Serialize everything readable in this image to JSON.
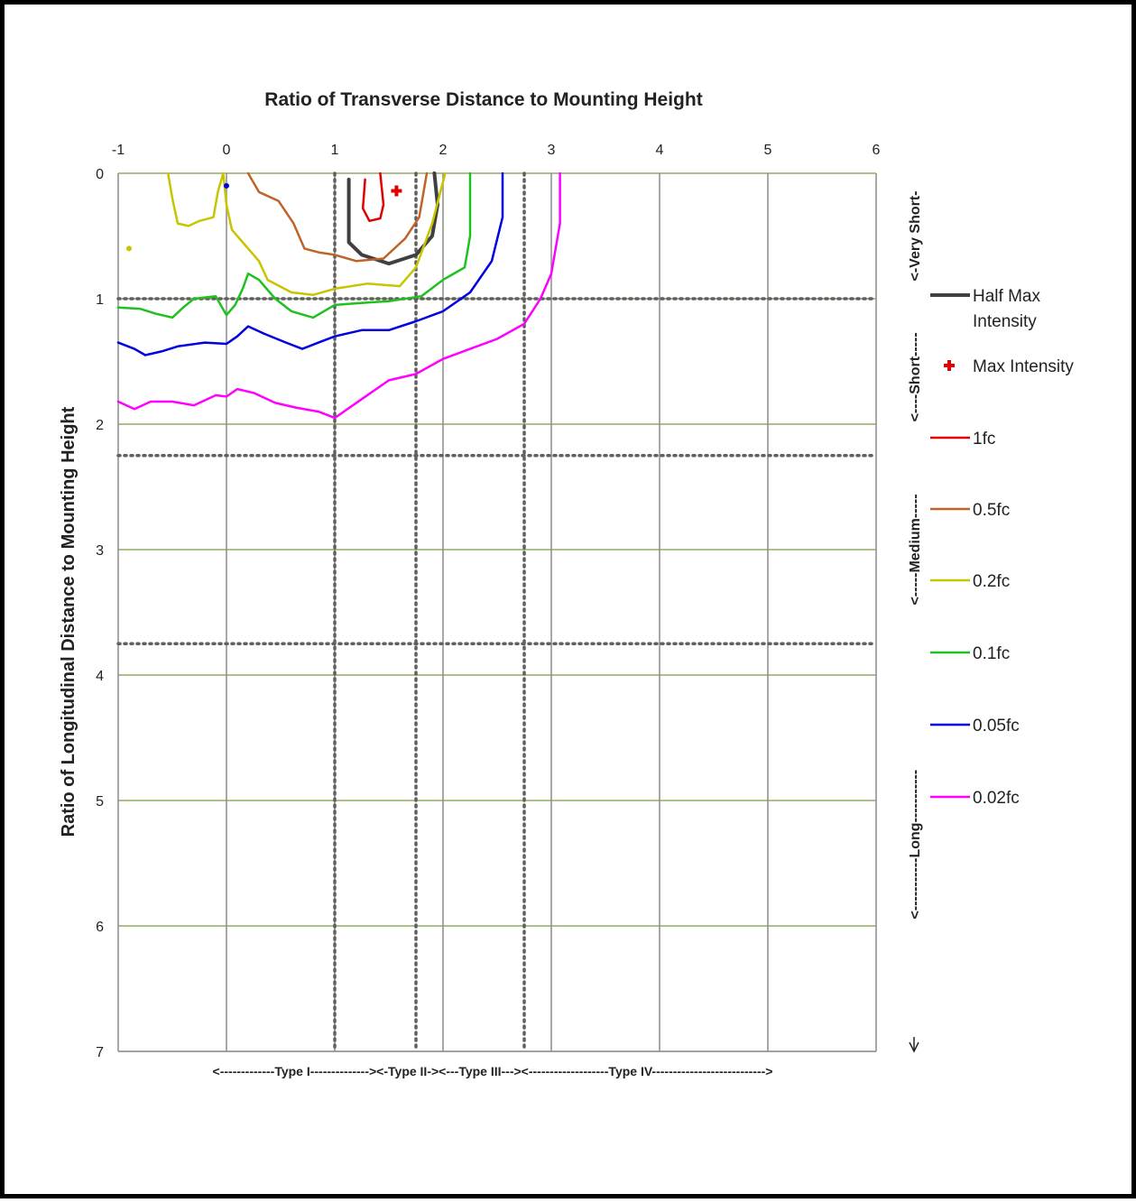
{
  "chart_data": {
    "type": "line",
    "title": "Ratio of Transverse Distance to Mounting Height",
    "xlabel": "Ratio of Transverse Distance to Mounting Height",
    "ylabel": "Ratio of Longitudinal Distance to Mounting Height",
    "xlim": [
      -1,
      6
    ],
    "ylim": [
      7,
      0
    ],
    "x_ticks": [
      "-1",
      "0",
      "1",
      "2",
      "3",
      "4",
      "5",
      "6"
    ],
    "y_ticks": [
      "0",
      "1",
      "2",
      "3",
      "4",
      "5",
      "6",
      "7"
    ],
    "grid": true,
    "legend_position": "right",
    "type_boundaries_x": [
      1,
      1.75,
      2.75
    ],
    "length_boundaries_y": [
      1,
      2.25,
      3.75
    ],
    "type_bands_text": "<-------------Type I--------------><-Type II-><---Type III---><-------------------Type IV--------------------------->",
    "length_bands": [
      {
        "label": "<-Very Short-",
        "from": 0,
        "to": 1
      },
      {
        "label": "<----Short-----",
        "from": 1,
        "to": 2.25
      },
      {
        "label": "<-----Medium-----",
        "from": 2.25,
        "to": 3.75
      },
      {
        "label": "<-----------Long-----------",
        "from": 3.75,
        "to": 7
      }
    ],
    "series": [
      {
        "name": "Half Max Intensity",
        "color": "#404040",
        "width": 4,
        "points": [
          [
            1.13,
            0.05
          ],
          [
            1.13,
            0.55
          ],
          [
            1.25,
            0.65
          ],
          [
            1.5,
            0.72
          ],
          [
            1.75,
            0.65
          ],
          [
            1.9,
            0.5
          ],
          [
            1.95,
            0.25
          ],
          [
            1.92,
            0
          ]
        ]
      },
      {
        "name": "1fc",
        "color": "#e00000",
        "width": 2.5,
        "points": [
          [
            1.28,
            0.05
          ],
          [
            1.26,
            0.28
          ],
          [
            1.32,
            0.38
          ],
          [
            1.42,
            0.36
          ],
          [
            1.45,
            0.25
          ],
          [
            1.42,
            0
          ]
        ]
      },
      {
        "name": "0.5fc",
        "color": "#c0632a",
        "width": 2.5,
        "points": [
          [
            0.2,
            0
          ],
          [
            0.3,
            0.15
          ],
          [
            0.48,
            0.22
          ],
          [
            0.62,
            0.4
          ],
          [
            0.72,
            0.6
          ],
          [
            0.85,
            0.63
          ],
          [
            1.0,
            0.65
          ],
          [
            1.2,
            0.7
          ],
          [
            1.45,
            0.68
          ],
          [
            1.65,
            0.52
          ],
          [
            1.78,
            0.35
          ],
          [
            1.85,
            0
          ]
        ]
      },
      {
        "name": "0.2fc",
        "color": "#c8c400",
        "width": 2.5,
        "points": [
          [
            -0.54,
            0
          ],
          [
            -0.5,
            0.2
          ],
          [
            -0.45,
            0.4
          ],
          [
            -0.35,
            0.42
          ],
          [
            -0.25,
            0.38
          ],
          [
            -0.12,
            0.35
          ],
          [
            -0.08,
            0.15
          ],
          [
            -0.03,
            0
          ],
          [
            0.0,
            0.25
          ],
          [
            0.05,
            0.45
          ],
          [
            0.15,
            0.55
          ],
          [
            0.3,
            0.7
          ],
          [
            0.38,
            0.85
          ],
          [
            0.6,
            0.95
          ],
          [
            0.8,
            0.97
          ],
          [
            1.0,
            0.92
          ],
          [
            1.3,
            0.88
          ],
          [
            1.6,
            0.9
          ],
          [
            1.75,
            0.75
          ],
          [
            1.9,
            0.4
          ],
          [
            2.02,
            0
          ]
        ]
      },
      {
        "name": "0.1fc",
        "color": "#20c020",
        "width": 2.5,
        "points": [
          [
            -1.0,
            1.07
          ],
          [
            -0.8,
            1.08
          ],
          [
            -0.65,
            1.12
          ],
          [
            -0.5,
            1.15
          ],
          [
            -0.4,
            1.07
          ],
          [
            -0.3,
            1.0
          ],
          [
            -0.1,
            0.98
          ],
          [
            0.0,
            1.13
          ],
          [
            0.08,
            1.05
          ],
          [
            0.15,
            0.92
          ],
          [
            0.2,
            0.8
          ],
          [
            0.3,
            0.85
          ],
          [
            0.45,
            1.0
          ],
          [
            0.6,
            1.1
          ],
          [
            0.8,
            1.15
          ],
          [
            1.0,
            1.05
          ],
          [
            1.3,
            1.03
          ],
          [
            1.5,
            1.02
          ],
          [
            1.8,
            0.98
          ],
          [
            2.0,
            0.85
          ],
          [
            2.2,
            0.75
          ],
          [
            2.25,
            0.5
          ],
          [
            2.25,
            0
          ]
        ]
      },
      {
        "name": "0.05fc",
        "color": "#0000e0",
        "width": 2.5,
        "points": [
          [
            -1.0,
            1.35
          ],
          [
            -0.85,
            1.4
          ],
          [
            -0.75,
            1.45
          ],
          [
            -0.6,
            1.42
          ],
          [
            -0.45,
            1.38
          ],
          [
            -0.2,
            1.35
          ],
          [
            0.0,
            1.36
          ],
          [
            0.1,
            1.3
          ],
          [
            0.2,
            1.22
          ],
          [
            0.35,
            1.28
          ],
          [
            0.55,
            1.35
          ],
          [
            0.7,
            1.4
          ],
          [
            0.85,
            1.35
          ],
          [
            1.0,
            1.3
          ],
          [
            1.25,
            1.25
          ],
          [
            1.5,
            1.25
          ],
          [
            1.75,
            1.18
          ],
          [
            2.0,
            1.1
          ],
          [
            2.25,
            0.95
          ],
          [
            2.45,
            0.7
          ],
          [
            2.55,
            0.35
          ],
          [
            2.55,
            0
          ]
        ]
      },
      {
        "name": "0.02fc",
        "color": "#ff00ff",
        "width": 2.5,
        "points": [
          [
            -1.0,
            1.82
          ],
          [
            -0.85,
            1.88
          ],
          [
            -0.7,
            1.82
          ],
          [
            -0.5,
            1.82
          ],
          [
            -0.3,
            1.85
          ],
          [
            -0.1,
            1.77
          ],
          [
            0.0,
            1.78
          ],
          [
            0.1,
            1.72
          ],
          [
            0.25,
            1.75
          ],
          [
            0.45,
            1.83
          ],
          [
            0.65,
            1.87
          ],
          [
            0.85,
            1.9
          ],
          [
            1.0,
            1.95
          ],
          [
            1.25,
            1.8
          ],
          [
            1.5,
            1.65
          ],
          [
            1.75,
            1.6
          ],
          [
            2.0,
            1.48
          ],
          [
            2.25,
            1.4
          ],
          [
            2.5,
            1.32
          ],
          [
            2.75,
            1.2
          ],
          [
            2.9,
            1.0
          ],
          [
            3.0,
            0.8
          ],
          [
            3.08,
            0.4
          ],
          [
            3.08,
            0
          ]
        ]
      }
    ],
    "max_intensity": {
      "name": "Max Intensity",
      "x": 1.57,
      "y": 0.14,
      "color": "#e00000"
    },
    "small_markers": [
      {
        "x": -0.9,
        "y": 0.6,
        "color": "#c8c400"
      },
      {
        "x": 0.0,
        "y": 0.1,
        "color": "#0000e0"
      }
    ],
    "legend": [
      {
        "label_lines": [
          "Half Max",
          "Intensity"
        ],
        "kind": "line",
        "color": "#404040",
        "width": 4
      },
      {
        "label_lines": [
          "Max Intensity"
        ],
        "kind": "plus",
        "color": "#e00000"
      },
      {
        "label_lines": [
          "1fc"
        ],
        "kind": "line",
        "color": "#e00000",
        "width": 2.5
      },
      {
        "label_lines": [
          "0.5fc"
        ],
        "kind": "line",
        "color": "#c0632a",
        "width": 2.5
      },
      {
        "label_lines": [
          "0.2fc"
        ],
        "kind": "line",
        "color": "#c8c400",
        "width": 2.5
      },
      {
        "label_lines": [
          "0.1fc"
        ],
        "kind": "line",
        "color": "#20c020",
        "width": 2.5
      },
      {
        "label_lines": [
          "0.05fc"
        ],
        "kind": "line",
        "color": "#0000e0",
        "width": 2.5
      },
      {
        "label_lines": [
          "0.02fc"
        ],
        "kind": "line",
        "color": "#ff00ff",
        "width": 2.5
      }
    ]
  },
  "colors": {
    "grid_horizontal": "#7a9a45",
    "grid_vertical": "#8c8c8c",
    "boundary_dotted": "#606060",
    "frame": "#000000"
  }
}
